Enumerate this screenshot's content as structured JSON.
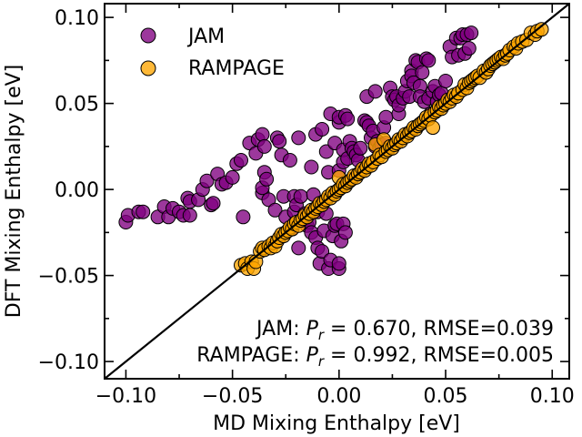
{
  "chart_data": {
    "type": "scatter",
    "xlabel": "MD Mixing Enthalpy [eV]",
    "ylabel": "DFT Mixing Enthalpy [eV]",
    "xlim": [
      -0.11,
      0.108
    ],
    "ylim": [
      -0.11,
      0.108
    ],
    "xticks": [
      -0.1,
      -0.05,
      0.0,
      0.05,
      0.1
    ],
    "xtick_labels": [
      "−0.10",
      "−0.05",
      "0.00",
      "0.05",
      "0.10"
    ],
    "yticks": [
      -0.1,
      -0.05,
      0.0,
      0.05,
      0.1
    ],
    "ytick_labels": [
      "−0.10",
      "−0.05",
      "0.00",
      "0.05",
      "0.10"
    ],
    "reference_line": "y = x",
    "legend_location": "top-left",
    "annotations": [
      {
        "text": "JAM: P_r = 0.670, RMSE=0.039",
        "series": "JAM",
        "pr": "0.670",
        "rmse": "0.039"
      },
      {
        "text": "RAMPAGE: P_r = 0.992, RMSE=0.005",
        "series": "RAMPAGE",
        "pr": "0.992",
        "rmse": "0.005"
      }
    ],
    "series": [
      {
        "name": "JAM",
        "color": "#800080",
        "points": [
          [
            -0.1,
            -0.019
          ],
          [
            -0.099,
            -0.015
          ],
          [
            -0.094,
            -0.013
          ],
          [
            -0.092,
            -0.013
          ],
          [
            -0.085,
            -0.016
          ],
          [
            -0.082,
            -0.01
          ],
          [
            -0.08,
            -0.016
          ],
          [
            -0.078,
            -0.011
          ],
          [
            -0.075,
            -0.013
          ],
          [
            -0.073,
            -0.015
          ],
          [
            -0.071,
            -0.005
          ],
          [
            -0.07,
            -0.015
          ],
          [
            -0.07,
            -0.007
          ],
          [
            -0.066,
            -0.006
          ],
          [
            -0.064,
            0.0
          ],
          [
            -0.062,
            0.005
          ],
          [
            -0.06,
            -0.009
          ],
          [
            -0.059,
            -0.008
          ],
          [
            -0.057,
            0.009
          ],
          [
            -0.055,
            0.003
          ],
          [
            -0.053,
            0.004
          ],
          [
            -0.05,
            0.007
          ],
          [
            -0.048,
            0.015
          ],
          [
            -0.046,
            0.017
          ],
          [
            -0.045,
            -0.016
          ],
          [
            -0.042,
            0.027
          ],
          [
            -0.039,
            0.021
          ],
          [
            -0.038,
            0.029
          ],
          [
            -0.036,
            0.032
          ],
          [
            -0.036,
            -0.002
          ],
          [
            -0.036,
            0.001
          ],
          [
            -0.035,
            0.025
          ],
          [
            -0.035,
            0.01
          ],
          [
            -0.034,
            0.006
          ],
          [
            -0.033,
            -0.006
          ],
          [
            -0.03,
            -0.012
          ],
          [
            -0.029,
            0.03
          ],
          [
            -0.028,
            0.028
          ],
          [
            -0.027,
            0.02
          ],
          [
            -0.026,
            -0.004
          ],
          [
            -0.025,
            -0.016
          ],
          [
            -0.024,
            -0.024
          ],
          [
            -0.023,
            0.017
          ],
          [
            -0.022,
            -0.023
          ],
          [
            -0.021,
            -0.004
          ],
          [
            -0.021,
            -0.013
          ],
          [
            -0.02,
            -0.009
          ],
          [
            -0.019,
            0.03
          ],
          [
            -0.019,
            -0.034
          ],
          [
            -0.018,
            -0.004
          ],
          [
            -0.017,
            -0.018
          ],
          [
            -0.016,
            -0.014
          ],
          [
            -0.015,
            -0.021
          ],
          [
            -0.014,
            -0.019
          ],
          [
            -0.013,
            0.013
          ],
          [
            -0.013,
            -0.025
          ],
          [
            -0.012,
            -0.003
          ],
          [
            -0.011,
            0.032
          ],
          [
            -0.011,
            -0.028
          ],
          [
            -0.01,
            -0.013
          ],
          [
            -0.01,
            -0.034
          ],
          [
            -0.009,
            -0.043
          ],
          [
            -0.008,
            -0.036
          ],
          [
            -0.008,
            0.035
          ],
          [
            -0.007,
            -0.024
          ],
          [
            -0.006,
            0.022
          ],
          [
            -0.006,
            -0.014
          ],
          [
            -0.005,
            -0.046
          ],
          [
            -0.005,
            0.01
          ],
          [
            -0.004,
            0.044
          ],
          [
            -0.004,
            -0.041
          ],
          [
            -0.003,
            -0.027
          ],
          [
            -0.002,
            -0.021
          ],
          [
            -0.002,
            0.027
          ],
          [
            -0.001,
            -0.02
          ],
          [
            0.0,
            -0.046
          ],
          [
            0.0,
            -0.043
          ],
          [
            0.0,
            0.039
          ],
          [
            0.0,
            0.042
          ],
          [
            0.0,
            0.011
          ],
          [
            0.001,
            -0.03
          ],
          [
            0.002,
            -0.02
          ],
          [
            0.002,
            0.016
          ],
          [
            0.002,
            0.023
          ],
          [
            0.003,
            -0.025
          ],
          [
            0.003,
            0.043
          ],
          [
            0.004,
            0.041
          ],
          [
            0.004,
            0.018
          ],
          [
            0.005,
            0.028
          ],
          [
            0.006,
            0.024
          ],
          [
            0.007,
            0.022
          ],
          [
            0.008,
            0.02
          ],
          [
            0.009,
            0.017
          ],
          [
            0.01,
            0.024
          ],
          [
            0.012,
            0.04
          ],
          [
            0.013,
            0.039
          ],
          [
            0.013,
            0.054
          ],
          [
            0.014,
            0.037
          ],
          [
            0.015,
            0.03
          ],
          [
            0.016,
            0.034
          ],
          [
            0.017,
            0.057
          ],
          [
            0.017,
            0.025
          ],
          [
            0.018,
            0.028
          ],
          [
            0.019,
            0.024
          ],
          [
            0.02,
            0.026
          ],
          [
            0.021,
            0.036
          ],
          [
            0.022,
            0.027
          ],
          [
            0.022,
            0.042
          ],
          [
            0.024,
            0.059
          ],
          [
            0.025,
            0.054
          ],
          [
            0.026,
            0.052
          ],
          [
            0.027,
            0.054
          ],
          [
            0.028,
            0.044
          ],
          [
            0.028,
            0.049
          ],
          [
            0.03,
            0.053
          ],
          [
            0.031,
            0.057
          ],
          [
            0.032,
            0.063
          ],
          [
            0.033,
            0.054
          ],
          [
            0.034,
            0.069
          ],
          [
            0.034,
            0.066
          ],
          [
            0.035,
            0.062
          ],
          [
            0.036,
            0.075
          ],
          [
            0.037,
            0.074
          ],
          [
            0.038,
            0.06
          ],
          [
            0.038,
            0.054
          ],
          [
            0.039,
            0.068
          ],
          [
            0.04,
            0.051
          ],
          [
            0.041,
            0.076
          ],
          [
            0.042,
            0.075
          ],
          [
            0.042,
            0.053
          ],
          [
            0.043,
            0.044
          ],
          [
            0.044,
            0.057
          ],
          [
            0.045,
            0.06
          ],
          [
            0.046,
            0.051
          ],
          [
            0.047,
            0.055
          ],
          [
            0.048,
            0.056
          ],
          [
            0.05,
            0.063
          ],
          [
            0.052,
            0.083
          ],
          [
            0.053,
            0.077
          ],
          [
            0.055,
            0.088
          ],
          [
            0.056,
            0.078
          ],
          [
            0.057,
            0.088
          ],
          [
            0.058,
            0.09
          ],
          [
            0.059,
            0.079
          ],
          [
            0.06,
            0.09
          ],
          [
            0.061,
            0.082
          ],
          [
            0.062,
            0.091
          ]
        ]
      },
      {
        "name": "RAMPAGE",
        "color": "#ffa500",
        "points": [
          [
            -0.046,
            -0.044
          ],
          [
            -0.044,
            -0.043
          ],
          [
            -0.043,
            -0.046
          ],
          [
            -0.041,
            -0.042
          ],
          [
            -0.04,
            -0.046
          ],
          [
            -0.039,
            -0.042
          ],
          [
            -0.037,
            -0.036
          ],
          [
            -0.036,
            -0.034
          ],
          [
            -0.035,
            -0.035
          ],
          [
            -0.033,
            -0.033
          ],
          [
            -0.032,
            -0.034
          ],
          [
            -0.031,
            -0.031
          ],
          [
            -0.03,
            -0.033
          ],
          [
            -0.029,
            -0.03
          ],
          [
            -0.028,
            -0.028
          ],
          [
            -0.027,
            -0.026
          ],
          [
            -0.026,
            -0.027
          ],
          [
            -0.025,
            -0.025
          ],
          [
            -0.024,
            -0.024
          ],
          [
            -0.023,
            -0.022
          ],
          [
            -0.022,
            -0.023
          ],
          [
            -0.021,
            -0.02
          ],
          [
            -0.02,
            -0.019
          ],
          [
            -0.019,
            -0.021
          ],
          [
            -0.018,
            -0.018
          ],
          [
            -0.017,
            -0.017
          ],
          [
            -0.016,
            -0.015
          ],
          [
            -0.015,
            -0.016
          ],
          [
            -0.014,
            -0.014
          ],
          [
            -0.013,
            -0.012
          ],
          [
            -0.012,
            -0.013
          ],
          [
            -0.011,
            -0.011
          ],
          [
            -0.01,
            -0.01
          ],
          [
            -0.009,
            -0.008
          ],
          [
            -0.008,
            -0.009
          ],
          [
            -0.007,
            -0.007
          ],
          [
            -0.006,
            -0.006
          ],
          [
            -0.005,
            -0.004
          ],
          [
            -0.004,
            -0.005
          ],
          [
            -0.003,
            -0.002
          ],
          [
            -0.002,
            -0.003
          ],
          [
            -0.001,
            -0.001
          ],
          [
            0.0,
            0.0
          ],
          [
            0.0,
            0.007
          ],
          [
            0.001,
            0.001
          ],
          [
            0.002,
            0.003
          ],
          [
            0.003,
            0.002
          ],
          [
            0.004,
            0.004
          ],
          [
            0.005,
            0.005
          ],
          [
            0.006,
            0.006
          ],
          [
            0.007,
            0.008
          ],
          [
            0.008,
            0.007
          ],
          [
            0.009,
            0.009
          ],
          [
            0.01,
            0.01
          ],
          [
            0.011,
            0.012
          ],
          [
            0.012,
            0.011
          ],
          [
            0.013,
            0.013
          ],
          [
            0.014,
            0.015
          ],
          [
            0.015,
            0.014
          ],
          [
            0.016,
            0.016
          ],
          [
            0.017,
            0.026
          ],
          [
            0.018,
            0.018
          ],
          [
            0.019,
            0.02
          ],
          [
            0.02,
            0.019
          ],
          [
            0.021,
            0.029
          ],
          [
            0.022,
            0.022
          ],
          [
            0.023,
            0.023
          ],
          [
            0.024,
            0.025
          ],
          [
            0.025,
            0.024
          ],
          [
            0.026,
            0.026
          ],
          [
            0.027,
            0.027
          ],
          [
            0.028,
            0.029
          ],
          [
            0.029,
            0.028
          ],
          [
            0.03,
            0.03
          ],
          [
            0.031,
            0.032
          ],
          [
            0.032,
            0.031
          ],
          [
            0.033,
            0.033
          ],
          [
            0.034,
            0.034
          ],
          [
            0.035,
            0.036
          ],
          [
            0.036,
            0.035
          ],
          [
            0.037,
            0.037
          ],
          [
            0.038,
            0.038
          ],
          [
            0.039,
            0.039
          ],
          [
            0.04,
            0.04
          ],
          [
            0.041,
            0.042
          ],
          [
            0.042,
            0.041
          ],
          [
            0.043,
            0.043
          ],
          [
            0.044,
            0.036
          ],
          [
            0.045,
            0.045
          ],
          [
            0.046,
            0.046
          ],
          [
            0.047,
            0.048
          ],
          [
            0.048,
            0.047
          ],
          [
            0.049,
            0.049
          ],
          [
            0.05,
            0.05
          ],
          [
            0.051,
            0.052
          ],
          [
            0.052,
            0.051
          ],
          [
            0.053,
            0.053
          ],
          [
            0.054,
            0.055
          ],
          [
            0.055,
            0.054
          ],
          [
            0.056,
            0.056
          ],
          [
            0.058,
            0.058
          ],
          [
            0.059,
            0.061
          ],
          [
            0.06,
            0.059
          ],
          [
            0.061,
            0.062
          ],
          [
            0.062,
            0.063
          ],
          [
            0.063,
            0.064
          ],
          [
            0.064,
            0.065
          ],
          [
            0.065,
            0.066
          ],
          [
            0.066,
            0.065
          ],
          [
            0.068,
            0.069
          ],
          [
            0.069,
            0.068
          ],
          [
            0.07,
            0.07
          ],
          [
            0.071,
            0.072
          ],
          [
            0.072,
            0.073
          ],
          [
            0.073,
            0.074
          ],
          [
            0.074,
            0.075
          ],
          [
            0.075,
            0.076
          ],
          [
            0.076,
            0.077
          ],
          [
            0.077,
            0.076
          ],
          [
            0.078,
            0.078
          ],
          [
            0.079,
            0.079
          ],
          [
            0.08,
            0.081
          ],
          [
            0.082,
            0.083
          ],
          [
            0.083,
            0.082
          ],
          [
            0.084,
            0.085
          ],
          [
            0.086,
            0.086
          ],
          [
            0.088,
            0.087
          ],
          [
            0.09,
            0.091
          ],
          [
            0.092,
            0.09
          ],
          [
            0.093,
            0.092
          ],
          [
            0.095,
            0.093
          ]
        ]
      }
    ]
  }
}
